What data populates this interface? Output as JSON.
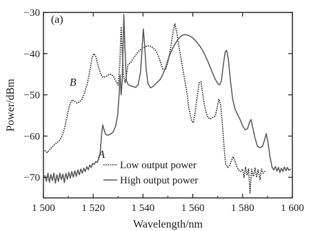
{
  "chart_data": {
    "type": "line",
    "xlabel": "Wavelength/nm",
    "ylabel": "Power/dBm",
    "xlim": [
      1500,
      1600
    ],
    "ylim": [
      -75,
      -30
    ],
    "xticks": [
      1500,
      1520,
      1540,
      1560,
      1580,
      1600
    ],
    "xtick_labels": [
      "1 500",
      "1 520",
      "1 540",
      "1 560",
      "1 580",
      "1 600"
    ],
    "yticks": [
      -70,
      -60,
      -50,
      -40,
      -30
    ],
    "ytick_labels": [
      "−70",
      "−60",
      "−50",
      "−40",
      "−30"
    ],
    "grid": false,
    "legend_position": "bottom-center",
    "annotations": [
      {
        "text": "(a)",
        "x": 1503,
        "y": -32.5,
        "italic": false
      },
      {
        "text": "B",
        "x": 1510.5,
        "y": -47.8,
        "italic": true
      },
      {
        "text": "A",
        "x": 1522,
        "y": -65.3,
        "italic": true
      }
    ],
    "series": [
      {
        "name": "Low output power",
        "style": "dotted",
        "color": "#1a1a1a",
        "points": [
          [
            1500.5,
            -63.5
          ],
          [
            1501.5,
            -64.0
          ],
          [
            1502.5,
            -63.3
          ],
          [
            1503.5,
            -62.6
          ],
          [
            1504.5,
            -62.0
          ],
          [
            1505.5,
            -61.6
          ],
          [
            1506.5,
            -61.0
          ],
          [
            1507.5,
            -60.0
          ],
          [
            1508.5,
            -58.0
          ],
          [
            1509.5,
            -55.2
          ],
          [
            1510.5,
            -52.5
          ],
          [
            1511.5,
            -51.2
          ],
          [
            1512.5,
            -51.6
          ],
          [
            1513.5,
            -52.0
          ],
          [
            1514.5,
            -51.7
          ],
          [
            1515.5,
            -51.0
          ],
          [
            1516.5,
            -49.6
          ],
          [
            1517.5,
            -47.6
          ],
          [
            1518.5,
            -44.6
          ],
          [
            1519.5,
            -41.2
          ],
          [
            1520.2,
            -40.0
          ],
          [
            1521,
            -40.6
          ],
          [
            1522,
            -43.0
          ],
          [
            1523,
            -45.0
          ],
          [
            1524,
            -45.8
          ],
          [
            1525,
            -45.6
          ],
          [
            1526,
            -45.2
          ],
          [
            1527,
            -45.0
          ],
          [
            1528,
            -45.4
          ],
          [
            1529,
            -46.6
          ],
          [
            1530,
            -47.6
          ],
          [
            1530.7,
            -42.5
          ],
          [
            1531.2,
            -33.5
          ],
          [
            1531.6,
            -39.0
          ],
          [
            1532.2,
            -45.5
          ],
          [
            1532.8,
            -47.0
          ],
          [
            1533.5,
            -44.5
          ],
          [
            1534,
            -42.5
          ],
          [
            1535,
            -42.2
          ],
          [
            1536,
            -41.2
          ],
          [
            1537,
            -40.4
          ],
          [
            1538,
            -39.6
          ],
          [
            1539,
            -39.0
          ],
          [
            1540,
            -38.6
          ],
          [
            1541,
            -38.3
          ],
          [
            1542,
            -38.1
          ],
          [
            1543,
            -38.2
          ],
          [
            1544,
            -38.6
          ],
          [
            1545,
            -39.2
          ],
          [
            1546,
            -40.3
          ],
          [
            1547,
            -42.0
          ],
          [
            1548,
            -43.8
          ],
          [
            1549,
            -44.0
          ],
          [
            1550,
            -42.0
          ],
          [
            1551,
            -39.0
          ],
          [
            1552,
            -35.0
          ],
          [
            1552.8,
            -32.8
          ],
          [
            1553.6,
            -35.0
          ],
          [
            1554.5,
            -38.5
          ],
          [
            1555.5,
            -42.0
          ],
          [
            1556.5,
            -45.5
          ],
          [
            1557.5,
            -49.0
          ],
          [
            1558.5,
            -53.5
          ],
          [
            1559.5,
            -56.2
          ],
          [
            1560.2,
            -56.8
          ],
          [
            1561,
            -54.0
          ],
          [
            1561.8,
            -50.2
          ],
          [
            1562.6,
            -47.0
          ],
          [
            1563.3,
            -46.8
          ],
          [
            1564,
            -50.0
          ],
          [
            1565,
            -53.5
          ],
          [
            1566,
            -55.5
          ],
          [
            1567,
            -55.8
          ],
          [
            1568,
            -55.5
          ],
          [
            1569,
            -55.2
          ],
          [
            1569.8,
            -53.0
          ],
          [
            1570.5,
            -51.0
          ],
          [
            1571.2,
            -52.5
          ],
          [
            1572,
            -58.0
          ],
          [
            1572.6,
            -63.0
          ],
          [
            1573.2,
            -66.8
          ],
          [
            1574,
            -67.6
          ],
          [
            1574.8,
            -67.2
          ],
          [
            1575.5,
            -66.0
          ],
          [
            1576.2,
            -65.0
          ],
          [
            1577,
            -66.2
          ],
          [
            1577.8,
            -67.6
          ],
          [
            1578.5,
            -68.2
          ],
          [
            1579.2,
            -68.6
          ],
          [
            1580,
            -68.0
          ],
          [
            1580.6,
            -70.0
          ],
          [
            1581.2,
            -67.6
          ],
          [
            1581.8,
            -69.5
          ],
          [
            1582.4,
            -68.0
          ],
          [
            1583,
            -73.8
          ],
          [
            1583.6,
            -68.0
          ],
          [
            1584.3,
            -69.8
          ],
          [
            1585,
            -67.8
          ],
          [
            1585.6,
            -70.0
          ],
          [
            1586.2,
            -68.2
          ],
          [
            1587,
            -70.5
          ],
          [
            1587.6,
            -68.0
          ],
          [
            1588.2,
            -69.0
          ],
          [
            1589,
            -68.5
          ]
        ]
      },
      {
        "name": "High output power",
        "style": "solid",
        "color": "#555555",
        "points": [
          [
            1500.5,
            -69.5
          ],
          [
            1501.2,
            -71.0
          ],
          [
            1501.8,
            -69.0
          ],
          [
            1502.4,
            -71.2
          ],
          [
            1503,
            -69.3
          ],
          [
            1503.6,
            -70.8
          ],
          [
            1504.2,
            -69.0
          ],
          [
            1504.8,
            -71.4
          ],
          [
            1505.4,
            -69.4
          ],
          [
            1506,
            -71.0
          ],
          [
            1506.6,
            -69.0
          ],
          [
            1507.2,
            -70.6
          ],
          [
            1507.8,
            -69.2
          ],
          [
            1508.4,
            -71.3
          ],
          [
            1509,
            -69.0
          ],
          [
            1509.6,
            -70.5
          ],
          [
            1510.2,
            -68.8
          ],
          [
            1510.8,
            -70.2
          ],
          [
            1511.4,
            -68.6
          ],
          [
            1512,
            -70.0
          ],
          [
            1512.6,
            -68.4
          ],
          [
            1513.2,
            -69.8
          ],
          [
            1513.8,
            -68.2
          ],
          [
            1514.4,
            -69.4
          ],
          [
            1515,
            -68.0
          ],
          [
            1515.6,
            -69.0
          ],
          [
            1516.2,
            -67.8
          ],
          [
            1516.8,
            -68.6
          ],
          [
            1517.4,
            -67.4
          ],
          [
            1518,
            -68.2
          ],
          [
            1518.6,
            -67.0
          ],
          [
            1519.2,
            -67.6
          ],
          [
            1519.8,
            -66.6
          ],
          [
            1520.4,
            -66.9
          ],
          [
            1521,
            -66.2
          ],
          [
            1521.6,
            -66.4
          ],
          [
            1522.2,
            -65.5
          ],
          [
            1522.8,
            -64.0
          ],
          [
            1523.3,
            -60.0
          ],
          [
            1523.8,
            -57.3
          ],
          [
            1524.4,
            -58.6
          ],
          [
            1525,
            -59.6
          ],
          [
            1526,
            -59.8
          ],
          [
            1527,
            -59.5
          ],
          [
            1528,
            -59.0
          ],
          [
            1529,
            -57.6
          ],
          [
            1529.8,
            -55.0
          ],
          [
            1530.4,
            -50.0
          ],
          [
            1530.8,
            -45.2
          ],
          [
            1531.2,
            -50.0
          ],
          [
            1531.6,
            -47.0
          ],
          [
            1532,
            -38.0
          ],
          [
            1532.3,
            -30.5
          ],
          [
            1532.7,
            -38.0
          ],
          [
            1533.3,
            -46.5
          ],
          [
            1534,
            -47.5
          ],
          [
            1535,
            -47.8
          ],
          [
            1536,
            -48.0
          ],
          [
            1537,
            -48.2
          ],
          [
            1538,
            -47.6
          ],
          [
            1539,
            -44.6
          ],
          [
            1539.6,
            -39.0
          ],
          [
            1540.1,
            -34.0
          ],
          [
            1540.6,
            -37.5
          ],
          [
            1541.3,
            -44.0
          ],
          [
            1542,
            -47.3
          ],
          [
            1543,
            -48.3
          ],
          [
            1544,
            -48.0
          ],
          [
            1545,
            -47.4
          ],
          [
            1546,
            -46.8
          ],
          [
            1547,
            -46.2
          ],
          [
            1548,
            -45.0
          ],
          [
            1549,
            -43.4
          ],
          [
            1550,
            -41.6
          ],
          [
            1551,
            -40.0
          ],
          [
            1552,
            -38.6
          ],
          [
            1553,
            -37.5
          ],
          [
            1554,
            -36.6
          ],
          [
            1555,
            -35.9
          ],
          [
            1556,
            -35.5
          ],
          [
            1557,
            -35.4
          ],
          [
            1558,
            -35.5
          ],
          [
            1559,
            -35.8
          ],
          [
            1560,
            -36.2
          ],
          [
            1561,
            -36.8
          ],
          [
            1562,
            -37.5
          ],
          [
            1563,
            -38.3
          ],
          [
            1564,
            -39.3
          ],
          [
            1565,
            -40.5
          ],
          [
            1566,
            -41.8
          ],
          [
            1567,
            -43.3
          ],
          [
            1568,
            -44.8
          ],
          [
            1569,
            -46.2
          ],
          [
            1570,
            -47.2
          ],
          [
            1570.8,
            -47.6
          ],
          [
            1571.5,
            -46.5
          ],
          [
            1572.2,
            -43.0
          ],
          [
            1573,
            -39.6
          ],
          [
            1573.6,
            -39.2
          ],
          [
            1574.3,
            -41.5
          ],
          [
            1575.2,
            -47.0
          ],
          [
            1576,
            -51.0
          ],
          [
            1577,
            -53.5
          ],
          [
            1578,
            -54.8
          ],
          [
            1579,
            -56.0
          ],
          [
            1580,
            -57.5
          ],
          [
            1581,
            -58.5
          ],
          [
            1582,
            -58.2
          ],
          [
            1582.8,
            -56.6
          ],
          [
            1583.4,
            -56.0
          ],
          [
            1584,
            -57.8
          ],
          [
            1585,
            -60.5
          ],
          [
            1586,
            -62.5
          ],
          [
            1587,
            -62.8
          ],
          [
            1588,
            -62.5
          ],
          [
            1588.8,
            -61.0
          ],
          [
            1589.5,
            -59.4
          ],
          [
            1590.2,
            -61.5
          ],
          [
            1591,
            -65.0
          ],
          [
            1591.8,
            -67.5
          ],
          [
            1592.5,
            -68.2
          ],
          [
            1593.2,
            -67.4
          ],
          [
            1593.8,
            -68.5
          ],
          [
            1594.4,
            -67.6
          ],
          [
            1595,
            -68.8
          ],
          [
            1595.6,
            -67.8
          ],
          [
            1596.2,
            -68.6
          ],
          [
            1596.8,
            -67.5
          ],
          [
            1597.4,
            -68.4
          ],
          [
            1598,
            -67.6
          ],
          [
            1598.6,
            -68.3
          ],
          [
            1599.4,
            -68.0
          ]
        ]
      }
    ]
  }
}
